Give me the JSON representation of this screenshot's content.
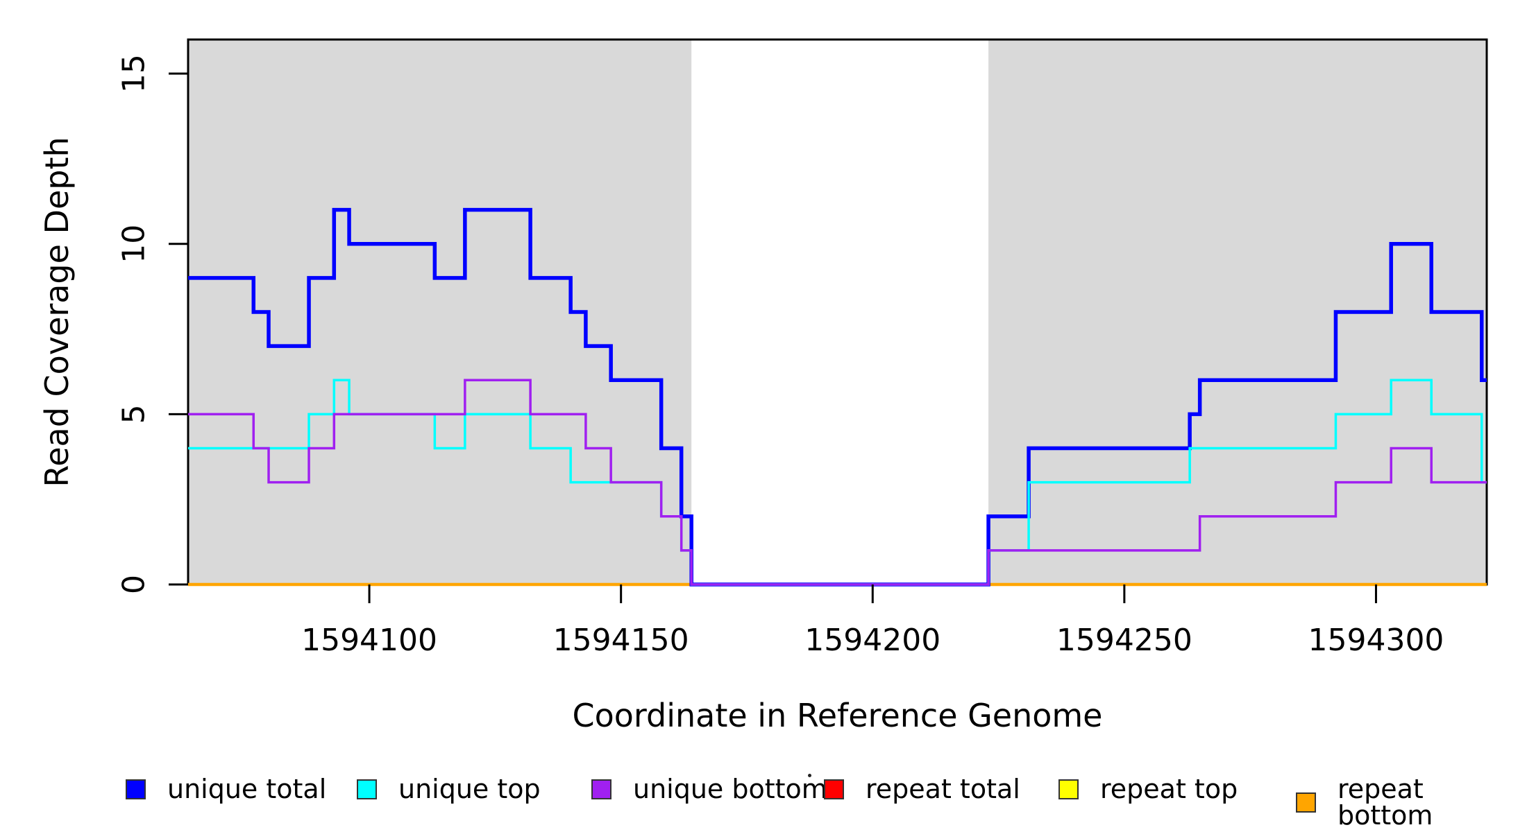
{
  "figure": {
    "title": "",
    "xlabel": "Coordinate in Reference Genome",
    "ylabel": "Read Coverage Depth"
  },
  "chart_data": {
    "type": "line",
    "subtype": "step-coverage",
    "title": "",
    "xlabel": "Coordinate in Reference Genome",
    "ylabel": "Read Coverage Depth",
    "xlim": [
      1594064,
      1594322
    ],
    "ylim": [
      0,
      16
    ],
    "x_ticks": [
      1594100,
      1594150,
      1594200,
      1594250,
      1594300
    ],
    "y_ticks": [
      0,
      5,
      10,
      15
    ],
    "grid": false,
    "background_color": "#ffffff",
    "shade_color": "#d9d9d9",
    "shaded_regions": [
      [
        1594064,
        1594164
      ],
      [
        1594223,
        1594322
      ]
    ],
    "gap_region": [
      1594164,
      1594223
    ],
    "legend_position": "bottom",
    "series": [
      {
        "name": "repeat total",
        "color": "#ff0000",
        "width": 4,
        "points": [
          [
            1594064,
            0
          ]
        ]
      },
      {
        "name": "repeat top",
        "color": "#ffff00",
        "width": 4,
        "points": [
          [
            1594064,
            0
          ]
        ]
      },
      {
        "name": "repeat bottom",
        "color": "#ffa500",
        "width": 4.5,
        "points": [
          [
            1594064,
            0
          ]
        ]
      },
      {
        "name": "unique total",
        "color": "#0000ff",
        "width": 5.5,
        "points": [
          [
            1594064,
            9
          ],
          [
            1594077,
            8
          ],
          [
            1594080,
            7
          ],
          [
            1594088,
            9
          ],
          [
            1594093,
            11
          ],
          [
            1594096,
            10
          ],
          [
            1594113,
            9
          ],
          [
            1594119,
            11
          ],
          [
            1594132,
            9
          ],
          [
            1594140,
            8
          ],
          [
            1594143,
            7
          ],
          [
            1594148,
            6
          ],
          [
            1594158,
            4
          ],
          [
            1594162,
            2
          ],
          [
            1594164,
            0
          ],
          [
            1594223,
            2
          ],
          [
            1594231,
            4
          ],
          [
            1594263,
            5
          ],
          [
            1594265,
            6
          ],
          [
            1594292,
            8
          ],
          [
            1594303,
            10
          ],
          [
            1594311,
            8
          ],
          [
            1594321,
            6
          ]
        ]
      },
      {
        "name": "unique top",
        "color": "#00ffff",
        "width": 3.5,
        "points": [
          [
            1594064,
            4
          ],
          [
            1594088,
            5
          ],
          [
            1594093,
            6
          ],
          [
            1594096,
            5
          ],
          [
            1594113,
            4
          ],
          [
            1594119,
            5
          ],
          [
            1594132,
            4
          ],
          [
            1594140,
            3
          ],
          [
            1594158,
            2
          ],
          [
            1594162,
            1
          ],
          [
            1594164,
            0
          ],
          [
            1594223,
            1
          ],
          [
            1594231,
            3
          ],
          [
            1594263,
            4
          ],
          [
            1594292,
            5
          ],
          [
            1594303,
            6
          ],
          [
            1594311,
            5
          ],
          [
            1594321,
            3
          ]
        ]
      },
      {
        "name": "unique bottom",
        "color": "#a020f0",
        "width": 3.5,
        "points": [
          [
            1594064,
            5
          ],
          [
            1594077,
            4
          ],
          [
            1594080,
            3
          ],
          [
            1594088,
            4
          ],
          [
            1594093,
            5
          ],
          [
            1594119,
            6
          ],
          [
            1594132,
            5
          ],
          [
            1594143,
            4
          ],
          [
            1594148,
            3
          ],
          [
            1594158,
            2
          ],
          [
            1594162,
            1
          ],
          [
            1594164,
            0
          ],
          [
            1594223,
            1
          ],
          [
            1594265,
            2
          ],
          [
            1594292,
            3
          ],
          [
            1594303,
            4
          ],
          [
            1594311,
            3
          ]
        ]
      }
    ],
    "legend": [
      {
        "label": "unique total",
        "color": "#0000ff"
      },
      {
        "label": "unique top",
        "color": "#00ffff"
      },
      {
        "label": "unique bottom",
        "color": "#a020f0"
      },
      {
        "label": "repeat total",
        "color": "#ff0000"
      },
      {
        "label": "repeat top",
        "color": "#ffff00"
      },
      {
        "label": "repeat bottom",
        "color": "#ffa500"
      }
    ]
  }
}
